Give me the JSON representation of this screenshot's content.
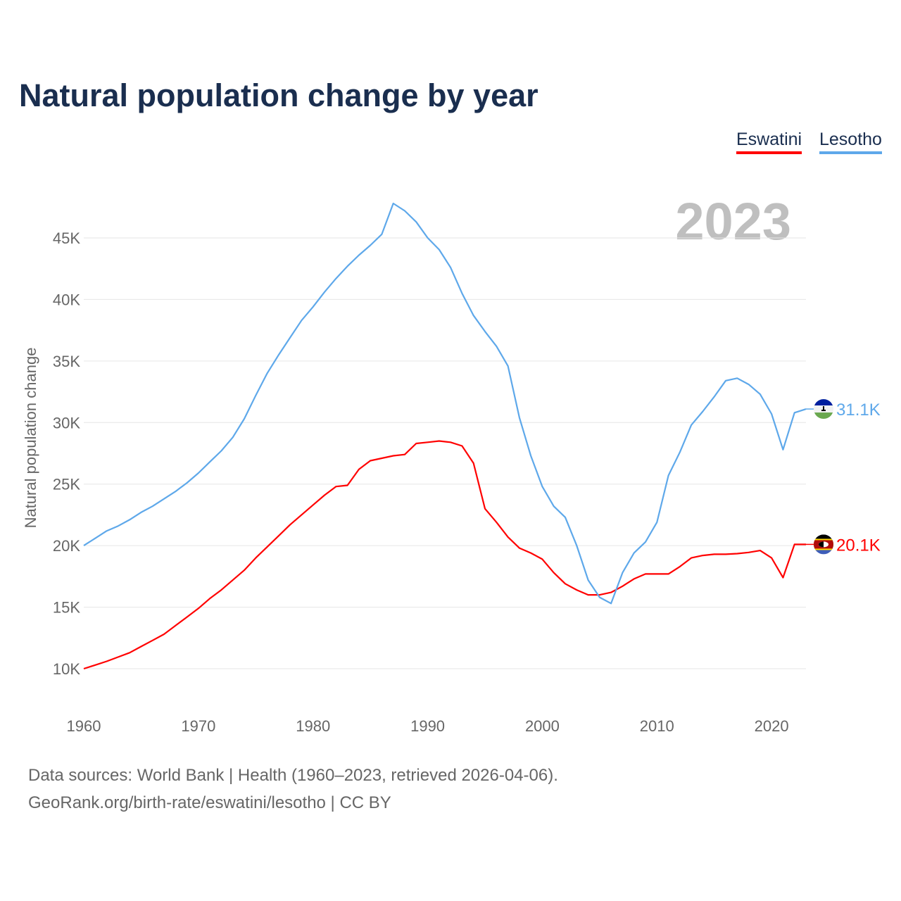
{
  "chart_data": {
    "type": "line",
    "title": "Natural population change by year",
    "xlabel": "",
    "ylabel": "Natural population change",
    "xlim": [
      1960,
      2023
    ],
    "ylim": [
      10000,
      45000
    ],
    "x_ticks": [
      "1960",
      "1970",
      "1980",
      "1990",
      "2000",
      "2010",
      "2020"
    ],
    "y_ticks": [
      "10K",
      "15K",
      "20K",
      "25K",
      "30K",
      "35K",
      "40K",
      "45K"
    ],
    "year_annotation": "2023",
    "legend_placement": "top-right",
    "x": [
      1960,
      1961,
      1962,
      1963,
      1964,
      1965,
      1966,
      1967,
      1968,
      1969,
      1970,
      1971,
      1972,
      1973,
      1974,
      1975,
      1976,
      1977,
      1978,
      1979,
      1980,
      1981,
      1982,
      1983,
      1984,
      1985,
      1986,
      1987,
      1988,
      1989,
      1990,
      1991,
      1992,
      1993,
      1994,
      1995,
      1996,
      1997,
      1998,
      1999,
      2000,
      2001,
      2002,
      2003,
      2004,
      2005,
      2006,
      2007,
      2008,
      2009,
      2010,
      2011,
      2012,
      2013,
      2014,
      2015,
      2016,
      2017,
      2018,
      2019,
      2020,
      2021,
      2022,
      2023
    ],
    "series": [
      {
        "name": "Eswatini",
        "color": "#ff0000",
        "end_label": "20.1K",
        "values": [
          10000,
          10300,
          10600,
          10950,
          11300,
          11800,
          12300,
          12800,
          13500,
          14200,
          14900,
          15700,
          16400,
          17200,
          18000,
          19000,
          19900,
          20800,
          21700,
          22500,
          23300,
          24100,
          24800,
          24900,
          26200,
          26900,
          27100,
          27300,
          27400,
          28300,
          28400,
          28500,
          28400,
          28100,
          26700,
          23000,
          21900,
          20700,
          19800,
          19400,
          18900,
          17800,
          16900,
          16400,
          16000,
          16000,
          16200,
          16700,
          17300,
          17700,
          17700,
          17700,
          18300,
          19000,
          19200,
          19300,
          19300,
          19350,
          19450,
          19600,
          19000,
          17400,
          20100,
          20100
        ]
      },
      {
        "name": "Lesotho",
        "color": "#5ea8ea",
        "end_label": "31.1K",
        "values": [
          20000,
          20600,
          21200,
          21600,
          22100,
          22700,
          23200,
          23800,
          24400,
          25100,
          25900,
          26800,
          27700,
          28800,
          30300,
          32200,
          34000,
          35500,
          36900,
          38300,
          39400,
          40600,
          41700,
          42700,
          43600,
          44400,
          45300,
          47800,
          47200,
          46300,
          45000,
          44050,
          42600,
          40500,
          38700,
          37400,
          36200,
          34600,
          30400,
          27300,
          24800,
          23200,
          22300,
          20000,
          17200,
          15800,
          15300,
          17800,
          19400,
          20300,
          21900,
          25700,
          27600,
          29800,
          30900,
          32100,
          33400,
          33600,
          33100,
          32300,
          30700,
          27800,
          30800,
          31100
        ]
      }
    ]
  },
  "footer": {
    "line1": "Data sources: World Bank | Health (1960–2023, retrieved 2026-04-06).",
    "line2": "GeoRank.org/birth-rate/eswatini/lesotho | CC BY"
  }
}
